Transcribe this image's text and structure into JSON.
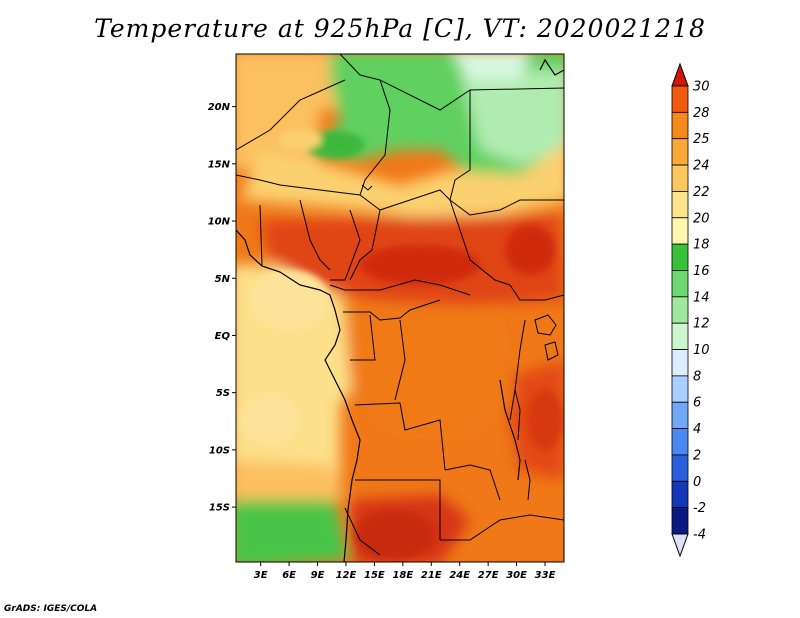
{
  "title": "Temperature at 925hPa [C], VT: 2020021218",
  "credit": "GrADS: IGES/COLA",
  "lat_labels": [
    {
      "text": "20N",
      "lat": 20
    },
    {
      "text": "15N",
      "lat": 15
    },
    {
      "text": "10N",
      "lat": 10
    },
    {
      "text": "5N",
      "lat": 5
    },
    {
      "text": "EQ",
      "lat": 0
    },
    {
      "text": "5S",
      "lat": -5
    },
    {
      "text": "10S",
      "lat": -10
    },
    {
      "text": "15S",
      "lat": -15
    }
  ],
  "lon_labels": [
    {
      "text": "3E",
      "lon": 3
    },
    {
      "text": "6E",
      "lon": 6
    },
    {
      "text": "9E",
      "lon": 9
    },
    {
      "text": "12E",
      "lon": 12
    },
    {
      "text": "15E",
      "lon": 15
    },
    {
      "text": "18E",
      "lon": 18
    },
    {
      "text": "21E",
      "lon": 21
    },
    {
      "text": "24E",
      "lon": 24
    },
    {
      "text": "27E",
      "lon": 27
    },
    {
      "text": "30E",
      "lon": 30
    },
    {
      "text": "33E",
      "lon": 33
    }
  ],
  "extent": {
    "lon_min": 0.4,
    "lon_max": 35.0,
    "lat_min": -19.8,
    "lat_max": 24.6
  },
  "colorbar": {
    "labels": [
      "30",
      "28",
      "25",
      "24",
      "22",
      "20",
      "18",
      "16",
      "14",
      "12",
      "10",
      "8",
      "6",
      "4",
      "2",
      "0",
      "-2",
      "-4"
    ],
    "colors": [
      "#e83010",
      "#f05a10",
      "#f58a1a",
      "#f9a83a",
      "#fbc860",
      "#fde58e",
      "#fdf6b0",
      "#38c038",
      "#70d870",
      "#a0e8a0",
      "#cff5cf",
      "#dceeff",
      "#a8cfff",
      "#70a8f5",
      "#4a88ef",
      "#2a60dc",
      "#1438b8",
      "#0a1a80",
      "#050a50"
    ],
    "top_color": "#d01a08",
    "bottom_color": "#e0e0f8"
  },
  "legend_colors": {
    "warm_core": "#d83c10",
    "coast_cool": "#fde08a",
    "green_band": "#40c040"
  }
}
